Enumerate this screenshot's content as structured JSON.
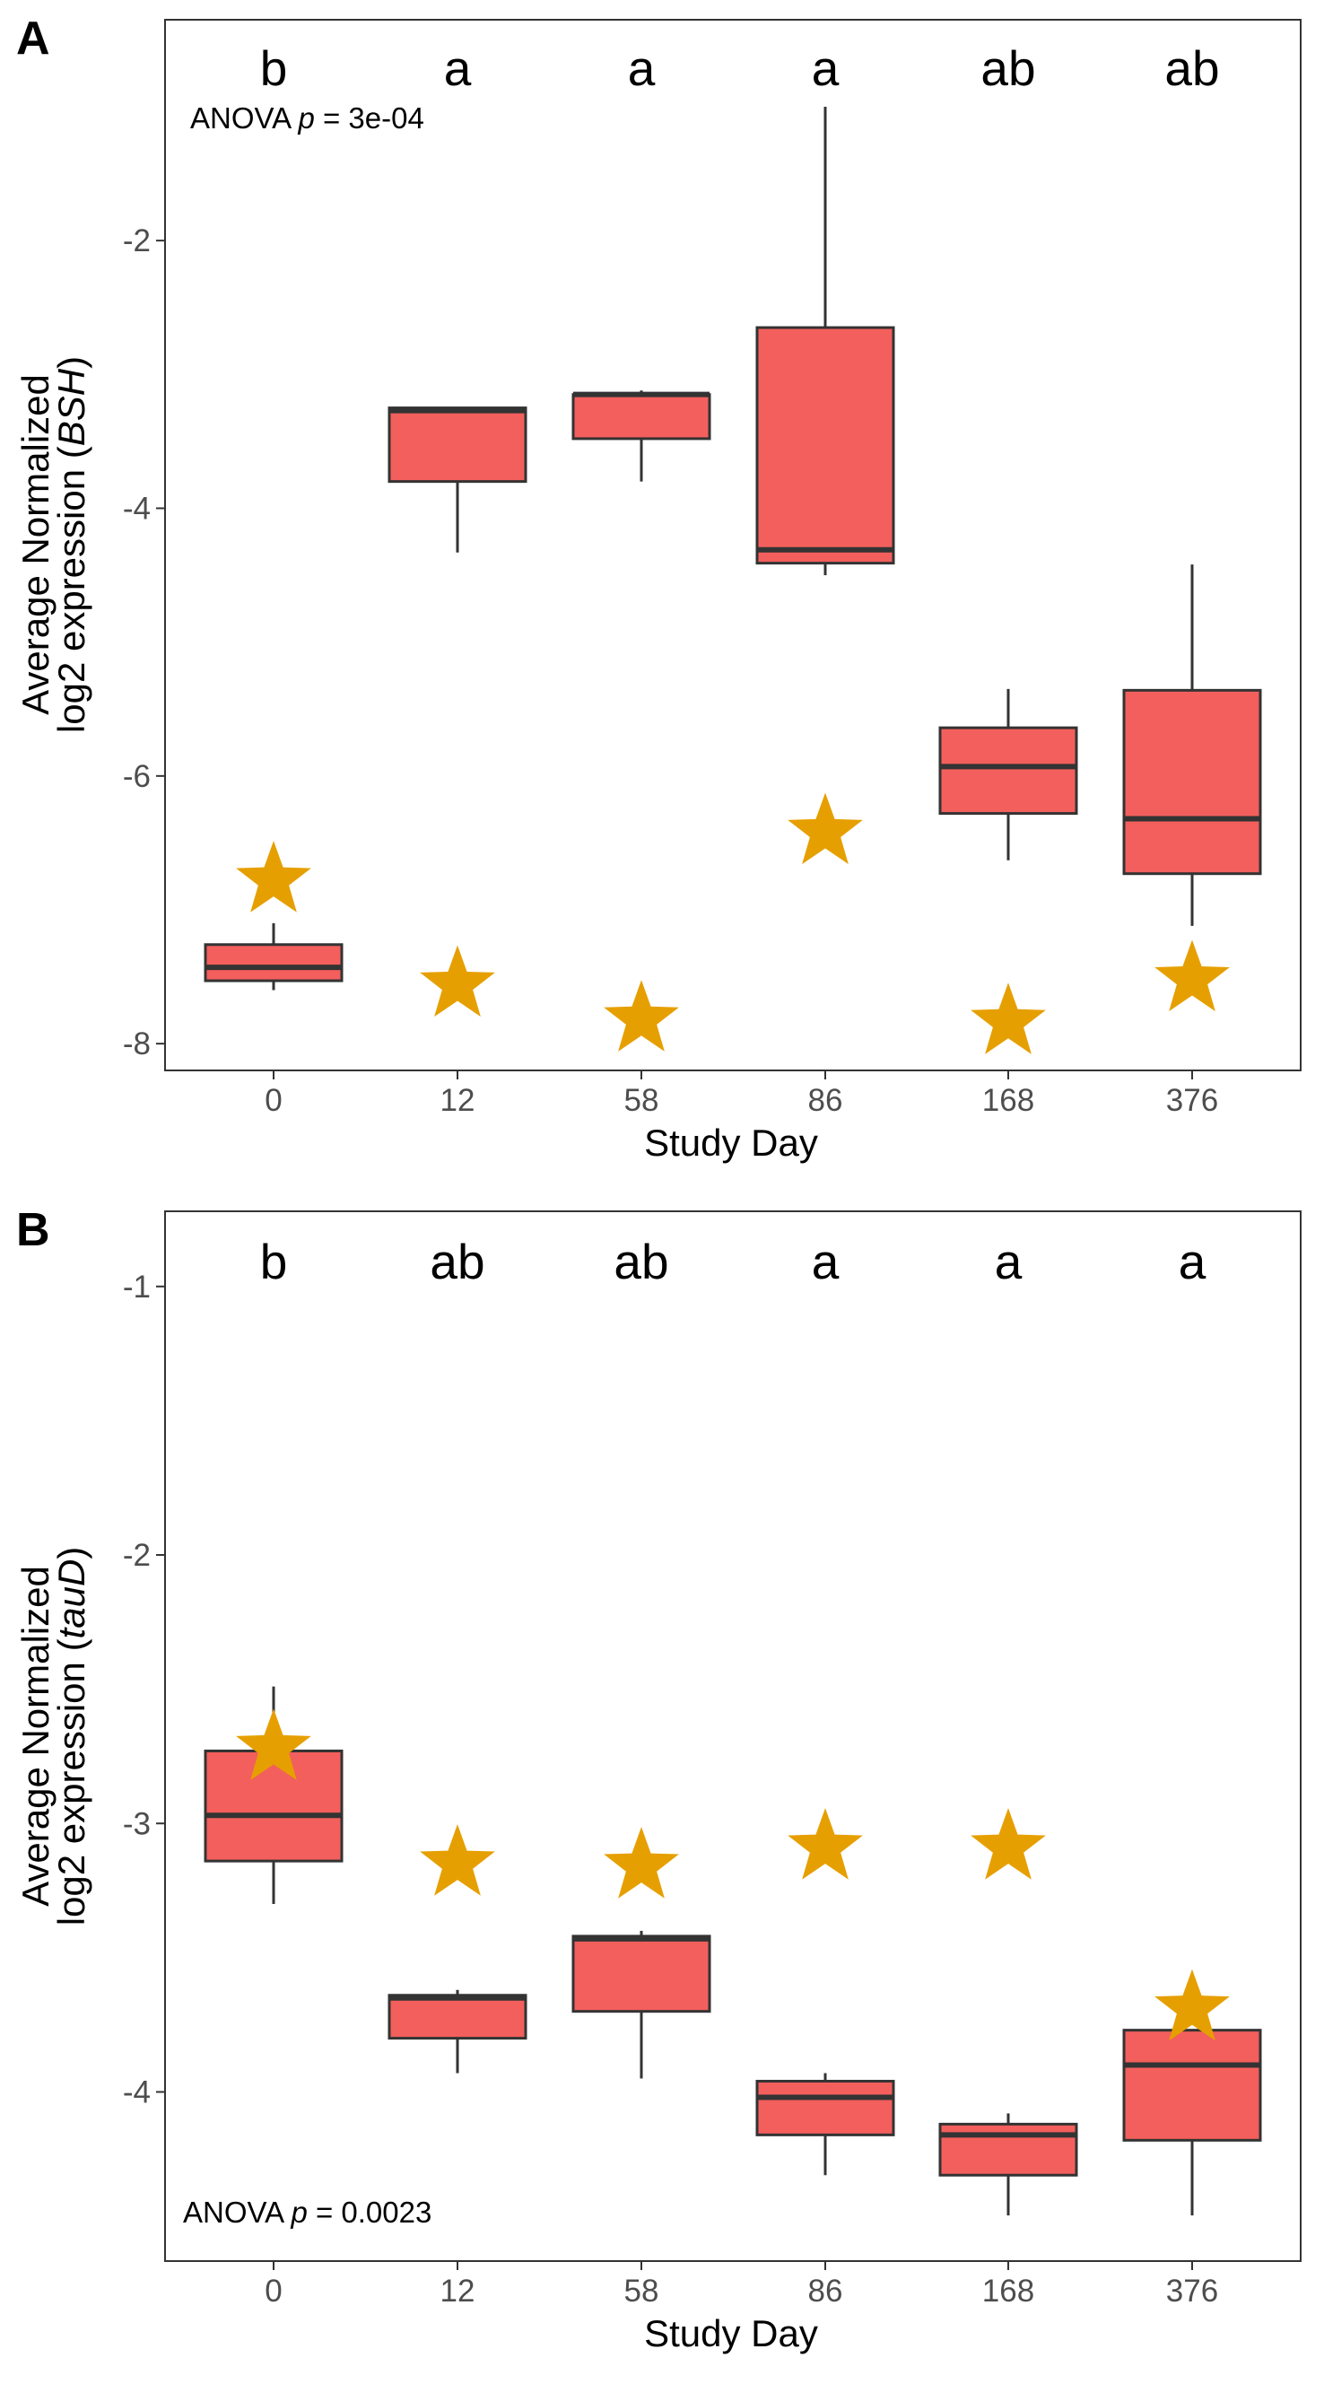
{
  "chart_data": [
    {
      "type": "box",
      "panel": "A",
      "xlabel": "Study Day",
      "ylabel_line1": "Average Normalized",
      "ylabel_line2_prefix": "log2 expression (",
      "ylabel_gene": "BSH",
      "ylabel_line2_suffix": ")",
      "ylim": [
        -8.2,
        -0.35
      ],
      "yticks": [
        -2,
        -4,
        -6,
        -8
      ],
      "categories": [
        "0",
        "12",
        "58",
        "86",
        "168",
        "376"
      ],
      "sig_letters": [
        "b",
        "a",
        "a",
        "a",
        "ab",
        "ab"
      ],
      "anova_prefix": "ANOVA ",
      "anova_p_symbol": "p",
      "anova_value": " = 3e-04",
      "anova_position": "top-left",
      "boxes": [
        {
          "min": -7.6,
          "q1": -7.53,
          "median": -7.43,
          "q3": -7.26,
          "max": -7.1
        },
        {
          "min": -4.33,
          "q1": -3.8,
          "median": -3.27,
          "q3": -3.25,
          "max": -3.25
        },
        {
          "min": -3.8,
          "q1": -3.48,
          "median": -3.15,
          "q3": -3.15,
          "max": -3.12
        },
        {
          "min": -4.5,
          "q1": -4.41,
          "median": -4.31,
          "q3": -2.65,
          "max": -1.0
        },
        {
          "min": -6.63,
          "q1": -6.28,
          "median": -5.93,
          "q3": -5.64,
          "max": -5.35
        },
        {
          "min": -7.12,
          "q1": -6.73,
          "median": -6.32,
          "q3": -5.36,
          "max": -4.42
        }
      ],
      "star_points": [
        -6.78,
        -7.56,
        -7.82,
        -6.42,
        -7.84,
        -7.52
      ],
      "box_fill": "#F35F5C",
      "star_color": "#E69F00",
      "grid": false
    },
    {
      "type": "box",
      "panel": "B",
      "xlabel": "Study Day",
      "ylabel_line1": "Average Normalized",
      "ylabel_line2_prefix": "log2 expression (",
      "ylabel_gene": "tauD",
      "ylabel_line2_suffix": ")",
      "ylim": [
        -4.63,
        -0.72
      ],
      "yticks": [
        -1,
        -2,
        -3,
        -4
      ],
      "categories": [
        "0",
        "12",
        "58",
        "86",
        "168",
        "376"
      ],
      "sig_letters": [
        "b",
        "ab",
        "ab",
        "a",
        "a",
        "a"
      ],
      "anova_prefix": "ANOVA ",
      "anova_p_symbol": "p",
      "anova_value": " = 0.0023",
      "anova_position": "bottom-left",
      "boxes": [
        {
          "min": -3.3,
          "q1": -3.14,
          "median": -2.97,
          "q3": -2.73,
          "max": -2.49
        },
        {
          "min": -3.93,
          "q1": -3.8,
          "median": -3.65,
          "q3": -3.64,
          "max": -3.62
        },
        {
          "min": -3.95,
          "q1": -3.7,
          "median": -3.43,
          "q3": -3.42,
          "max": -3.4
        },
        {
          "min": -4.31,
          "q1": -4.16,
          "median": -4.02,
          "q3": -3.96,
          "max": -3.93
        },
        {
          "min": -4.46,
          "q1": -4.31,
          "median": -4.16,
          "q3": -4.12,
          "max": -4.08
        },
        {
          "min": -4.46,
          "q1": -4.18,
          "median": -3.9,
          "q3": -3.77,
          "max": -3.77
        }
      ],
      "star_points": [
        -2.72,
        -3.15,
        -3.16,
        -3.09,
        -3.09,
        -3.69
      ],
      "box_fill": "#F35F5C",
      "star_color": "#E69F00",
      "grid": false
    }
  ]
}
